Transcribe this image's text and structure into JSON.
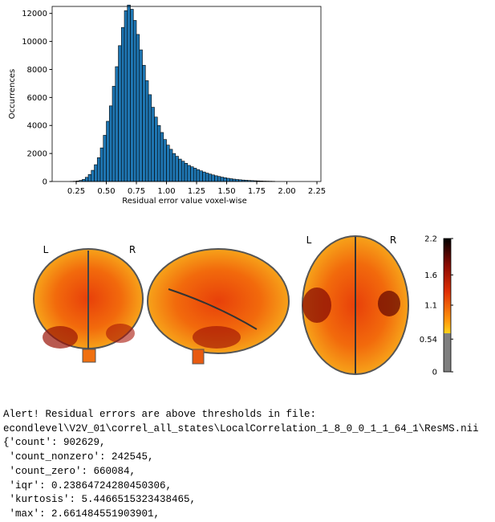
{
  "chart_data": {
    "type": "histogram",
    "xlabel": "Residual error value voxel-wise",
    "ylabel": "Occurrences",
    "color": "#1f77b4",
    "edgecolor": "#000000",
    "bins": [
      0.2,
      0.225,
      0.25,
      0.275,
      0.3,
      0.325,
      0.35,
      0.375,
      0.4,
      0.425,
      0.45,
      0.475,
      0.5,
      0.525,
      0.55,
      0.575,
      0.6,
      0.625,
      0.65,
      0.675,
      0.7,
      0.725,
      0.75,
      0.775,
      0.8,
      0.825,
      0.85,
      0.875,
      0.9,
      0.925,
      0.95,
      0.975,
      1.0,
      1.025,
      1.05,
      1.075,
      1.1,
      1.125,
      1.15,
      1.175,
      1.2,
      1.225,
      1.25,
      1.275,
      1.3,
      1.325,
      1.35,
      1.375,
      1.4,
      1.425,
      1.45,
      1.475,
      1.5,
      1.525,
      1.55,
      1.575,
      1.6,
      1.625,
      1.65,
      1.675,
      1.7,
      1.725,
      1.75,
      1.775,
      1.8,
      1.825,
      1.85,
      1.875,
      1.9
    ],
    "values": [
      10,
      20,
      40,
      80,
      150,
      300,
      500,
      800,
      1200,
      1700,
      2400,
      3300,
      4300,
      5400,
      6800,
      8200,
      9700,
      11000,
      12200,
      12600,
      12300,
      11500,
      10500,
      9400,
      8300,
      7200,
      6200,
      5300,
      4600,
      4000,
      3500,
      3000,
      2600,
      2300,
      2000,
      1800,
      1600,
      1450,
      1300,
      1150,
      1050,
      950,
      850,
      760,
      680,
      600,
      530,
      470,
      410,
      360,
      310,
      270,
      230,
      200,
      170,
      145,
      125,
      105,
      90,
      75,
      65,
      55,
      45,
      38,
      30,
      25,
      20,
      15
    ],
    "xlim": [
      0.05,
      2.283
    ],
    "ylim": [
      0,
      12500
    ],
    "xticks": [
      0.25,
      {
        "value": 0.5,
        "label": "0.50"
      },
      0.75,
      {
        "value": 1.0,
        "label": "1.00"
      },
      1.25,
      {
        "value": 1.5,
        "label": "1.50"
      },
      1.75,
      {
        "value": 2.0,
        "label": "2.00"
      },
      2.25
    ],
    "yticks": [
      0,
      2000,
      4000,
      6000,
      8000,
      10000,
      12000
    ],
    "grid": false
  },
  "brain_views": {
    "labels": [
      "L",
      "R",
      "L",
      "R"
    ]
  },
  "colorbar": {
    "lim": [
      0,
      2.2
    ],
    "ticks": [
      0,
      0.54,
      1.1,
      1.6,
      2.2
    ]
  },
  "output": {
    "lines": [
      "Alert! Residual errors are above thresholds in file:",
      "econdlevel\\V2V_01\\correl_all_states\\LocalCorrelation_1_8_0_0_1_1_64_1\\ResMS.nii",
      "{'count': 902629,",
      " 'count_nonzero': 242545,",
      " 'count_zero': 660084,",
      " 'iqr': 0.23864724280450306,",
      " 'kurtosis': 5.4466515323438465,",
      " 'max': 2.661484551903901,"
    ]
  }
}
